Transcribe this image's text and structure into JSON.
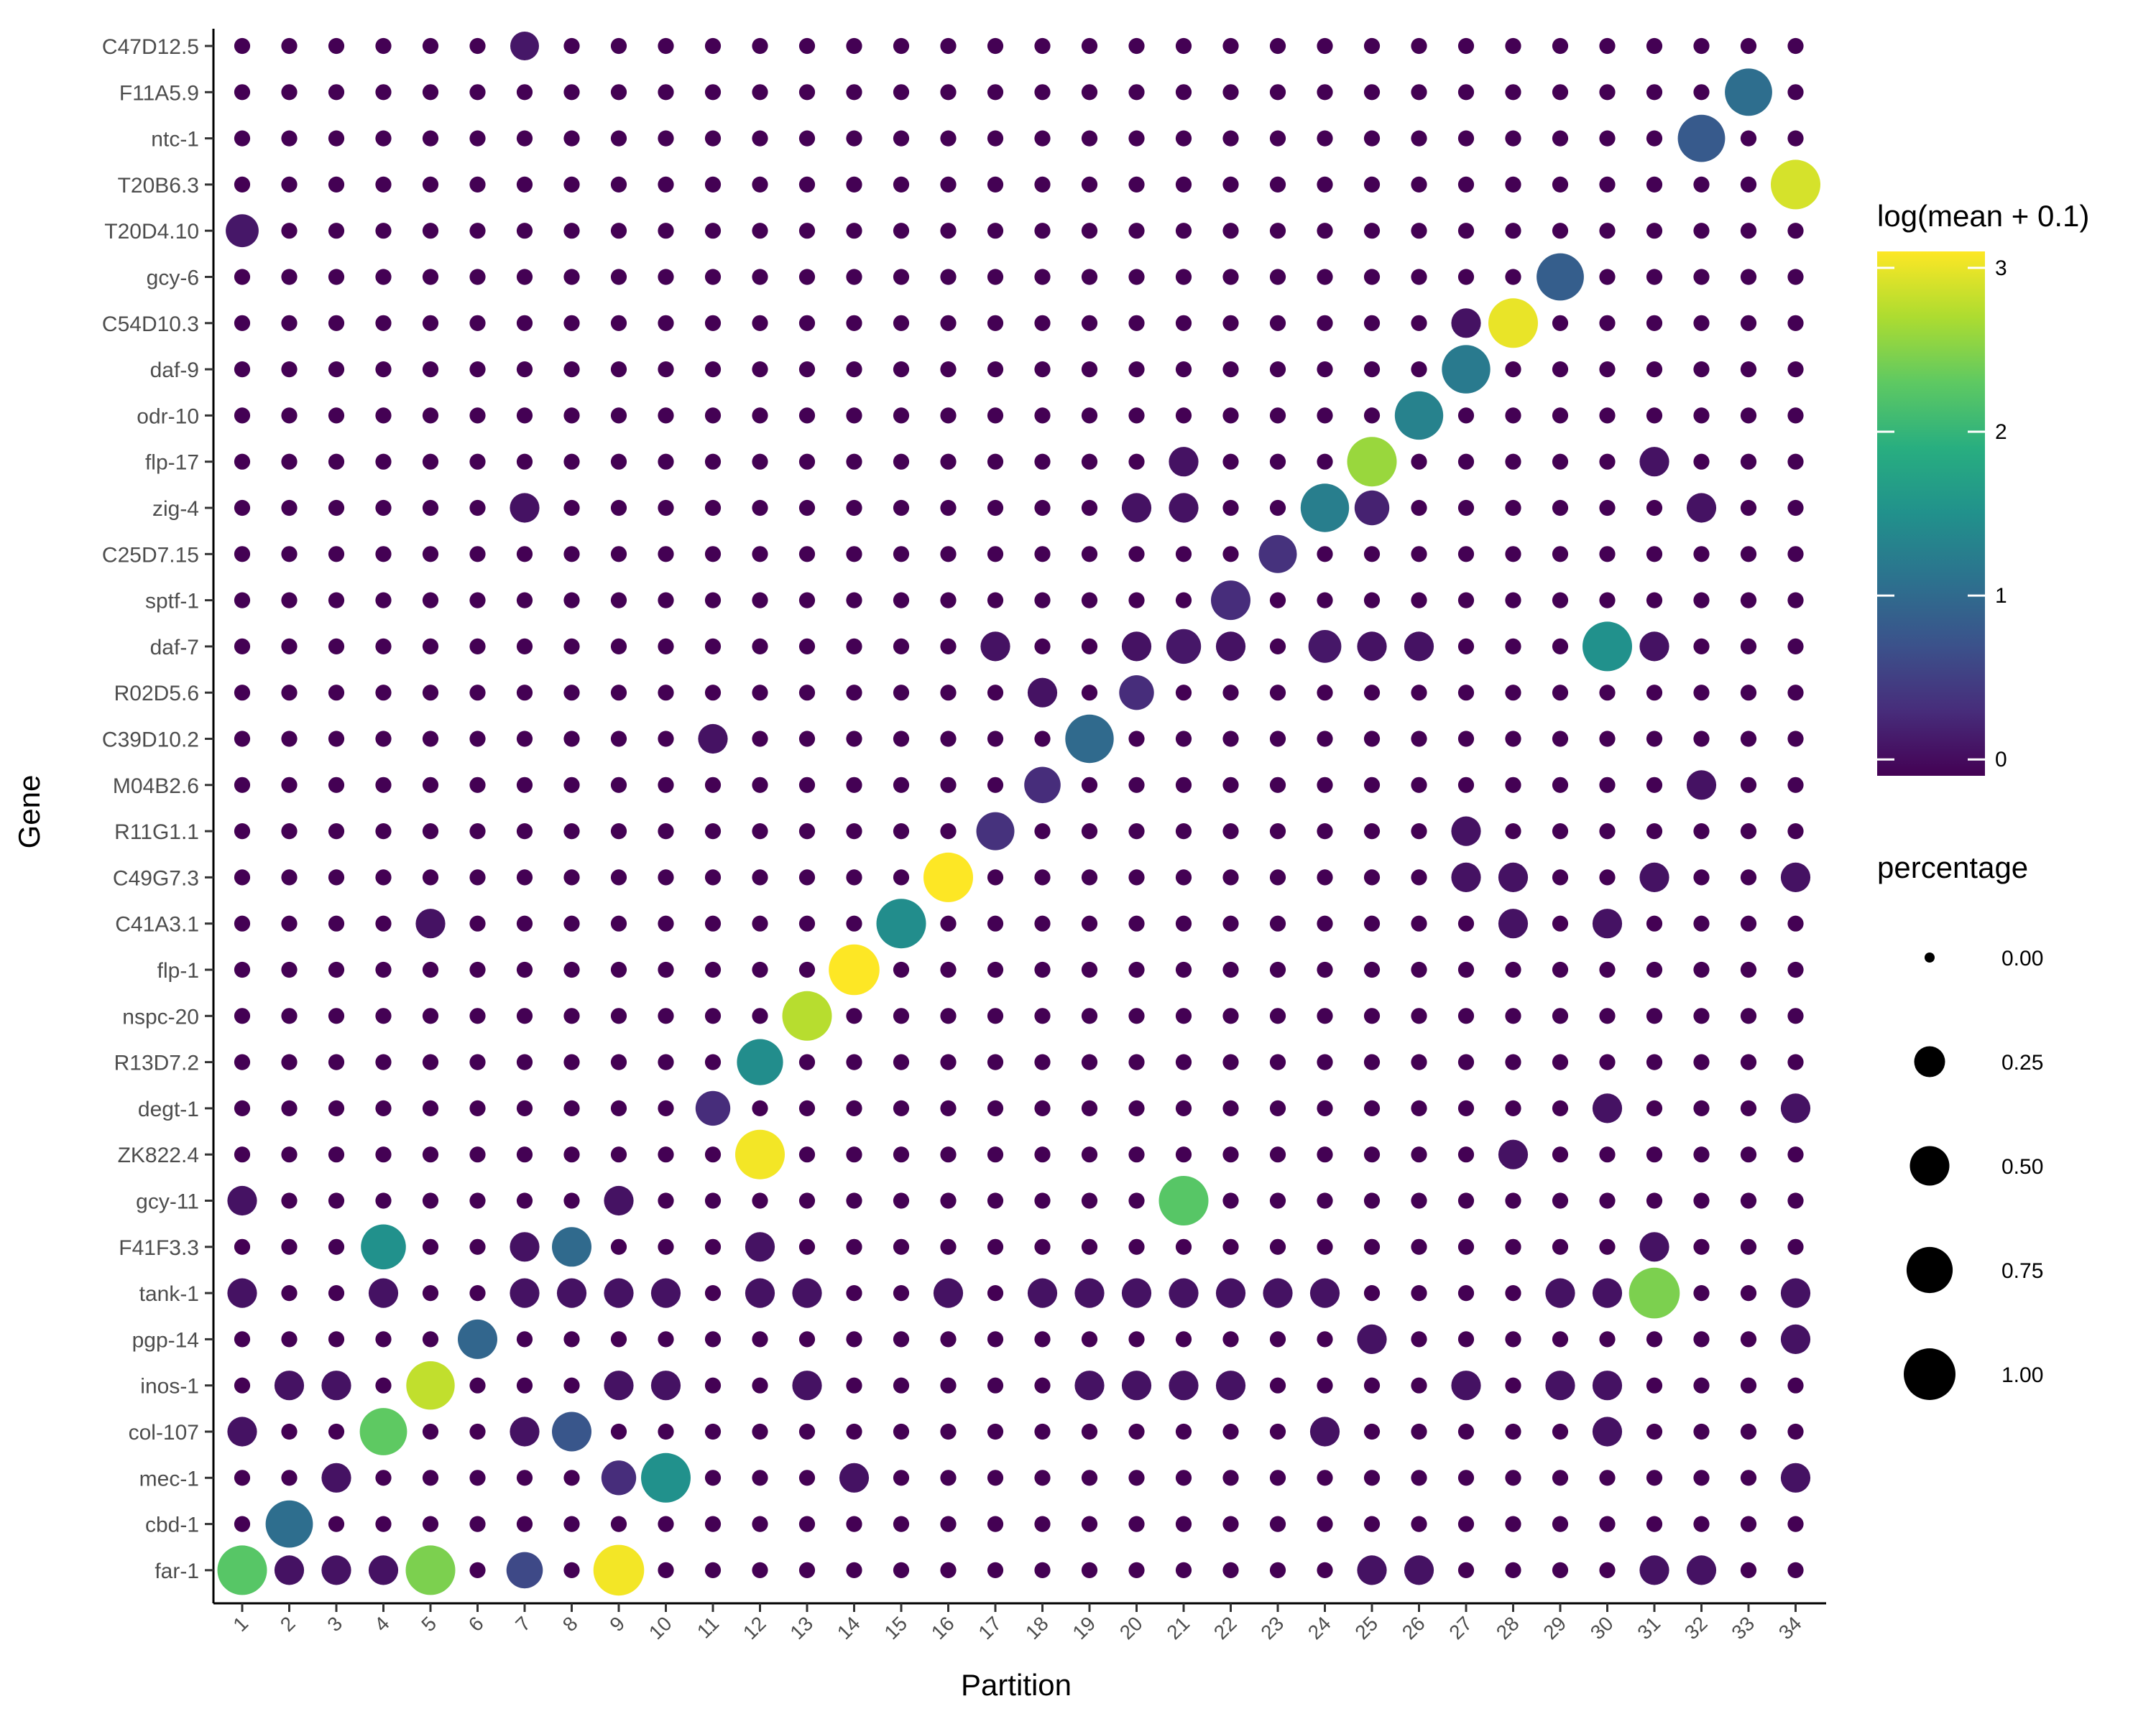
{
  "chart_data": {
    "type": "dot",
    "xlabel": "Partition",
    "ylabel": "Gene",
    "x_categories": [
      "1",
      "2",
      "3",
      "4",
      "5",
      "6",
      "7",
      "8",
      "9",
      "10",
      "11",
      "12",
      "13",
      "14",
      "15",
      "16",
      "17",
      "18",
      "19",
      "20",
      "21",
      "22",
      "23",
      "24",
      "25",
      "26",
      "27",
      "28",
      "29",
      "30",
      "31",
      "32",
      "33",
      "34"
    ],
    "genes_top_to_bottom": [
      "C47D12.5",
      "F11A5.9",
      "ntc-1",
      "T20B6.3",
      "T20D4.10",
      "gcy-6",
      "C54D10.3",
      "daf-9",
      "odr-10",
      "flp-17",
      "zig-4",
      "C25D7.15",
      "sptf-1",
      "daf-7",
      "R02D5.6",
      "C39D10.2",
      "M04B2.6",
      "R11G1.1",
      "C49G7.3",
      "C41A3.1",
      "flp-1",
      "nspc-20",
      "R13D7.2",
      "degt-1",
      "ZK822.4",
      "gcy-11",
      "F41F3.3",
      "tank-1",
      "pgp-14",
      "inos-1",
      "col-107",
      "mec-1",
      "cbd-1",
      "far-1"
    ],
    "background_percentage": 0.02,
    "background_log_mean": -0.1,
    "highlighted_points": [
      {
        "gene": "C47D12.5",
        "partition": "7",
        "percentage": 0.2,
        "log_mean": 0.1
      },
      {
        "gene": "F11A5.9",
        "partition": "33",
        "percentage": 0.8,
        "log_mean": 1.05
      },
      {
        "gene": "ntc-1",
        "partition": "32",
        "percentage": 0.8,
        "log_mean": 0.8
      },
      {
        "gene": "T20B6.3",
        "partition": "34",
        "percentage": 0.9,
        "log_mean": 2.9
      },
      {
        "gene": "T20D4.10",
        "partition": "1",
        "percentage": 0.3,
        "log_mean": 0.1
      },
      {
        "gene": "gcy-6",
        "partition": "29",
        "percentage": 0.8,
        "log_mean": 0.85
      },
      {
        "gene": "C54D10.3",
        "partition": "28",
        "percentage": 0.9,
        "log_mean": 3.0
      },
      {
        "gene": "daf-9",
        "partition": "27",
        "percentage": 0.85,
        "log_mean": 1.2
      },
      {
        "gene": "odr-10",
        "partition": "26",
        "percentage": 0.85,
        "log_mean": 1.3
      },
      {
        "gene": "flp-17",
        "partition": "25",
        "percentage": 0.9,
        "log_mean": 2.6
      },
      {
        "gene": "zig-4",
        "partition": "24",
        "percentage": 0.85,
        "log_mean": 1.25
      },
      {
        "gene": "zig-4",
        "partition": "25",
        "percentage": 0.35,
        "log_mean": 0.2
      },
      {
        "gene": "C25D7.15",
        "partition": "23",
        "percentage": 0.45,
        "log_mean": 0.35
      },
      {
        "gene": "sptf-1",
        "partition": "22",
        "percentage": 0.5,
        "log_mean": 0.3
      },
      {
        "gene": "daf-7",
        "partition": "30",
        "percentage": 0.9,
        "log_mean": 1.5
      },
      {
        "gene": "daf-7",
        "partition": "21",
        "percentage": 0.35,
        "log_mean": 0.1
      },
      {
        "gene": "daf-7",
        "partition": "24",
        "percentage": 0.3,
        "log_mean": 0.1
      },
      {
        "gene": "R02D5.6",
        "partition": "20",
        "percentage": 0.35,
        "log_mean": 0.3
      },
      {
        "gene": "C39D10.2",
        "partition": "19",
        "percentage": 0.85,
        "log_mean": 1.0
      },
      {
        "gene": "M04B2.6",
        "partition": "18",
        "percentage": 0.4,
        "log_mean": 0.3
      },
      {
        "gene": "R11G1.1",
        "partition": "17",
        "percentage": 0.45,
        "log_mean": 0.35
      },
      {
        "gene": "C49G7.3",
        "partition": "16",
        "percentage": 0.9,
        "log_mean": 3.1
      },
      {
        "gene": "C41A3.1",
        "partition": "15",
        "percentage": 0.9,
        "log_mean": 1.45
      },
      {
        "gene": "flp-1",
        "partition": "14",
        "percentage": 0.95,
        "log_mean": 3.1
      },
      {
        "gene": "nspc-20",
        "partition": "13",
        "percentage": 0.9,
        "log_mean": 2.75
      },
      {
        "gene": "R13D7.2",
        "partition": "12",
        "percentage": 0.75,
        "log_mean": 1.45
      },
      {
        "gene": "degt-1",
        "partition": "11",
        "percentage": 0.35,
        "log_mean": 0.3
      },
      {
        "gene": "ZK822.4",
        "partition": "12",
        "percentage": 0.9,
        "log_mean": 3.05
      },
      {
        "gene": "gcy-11",
        "partition": "21",
        "percentage": 0.9,
        "log_mean": 2.25
      },
      {
        "gene": "F41F3.3",
        "partition": "4",
        "percentage": 0.7,
        "log_mean": 1.5
      },
      {
        "gene": "F41F3.3",
        "partition": "8",
        "percentage": 0.5,
        "log_mean": 1.0
      },
      {
        "gene": "tank-1",
        "partition": "31",
        "percentage": 0.95,
        "log_mean": 2.45
      },
      {
        "gene": "pgp-14",
        "partition": "6",
        "percentage": 0.5,
        "log_mean": 0.95
      },
      {
        "gene": "inos-1",
        "partition": "5",
        "percentage": 0.85,
        "log_mean": 2.8
      },
      {
        "gene": "col-107",
        "partition": "4",
        "percentage": 0.8,
        "log_mean": 2.3
      },
      {
        "gene": "col-107",
        "partition": "8",
        "percentage": 0.5,
        "log_mean": 0.75
      },
      {
        "gene": "mec-1",
        "partition": "10",
        "percentage": 0.9,
        "log_mean": 1.5
      },
      {
        "gene": "mec-1",
        "partition": "9",
        "percentage": 0.35,
        "log_mean": 0.3
      },
      {
        "gene": "cbd-1",
        "partition": "2",
        "percentage": 0.8,
        "log_mean": 1.05
      },
      {
        "gene": "far-1",
        "partition": "1",
        "percentage": 0.9,
        "log_mean": 2.25
      },
      {
        "gene": "far-1",
        "partition": "5",
        "percentage": 0.9,
        "log_mean": 2.45
      },
      {
        "gene": "far-1",
        "partition": "9",
        "percentage": 0.95,
        "log_mean": 3.05
      },
      {
        "gene": "far-1",
        "partition": "7",
        "percentage": 0.4,
        "log_mean": 0.6
      }
    ],
    "moderate_points": {
      "percentage": 0.22,
      "log_mean": 0.05,
      "cells": [
        [
          "daf-7",
          "17"
        ],
        [
          "daf-7",
          "22"
        ],
        [
          "daf-7",
          "20"
        ],
        [
          "daf-7",
          "25"
        ],
        [
          "daf-7",
          "26"
        ],
        [
          "daf-7",
          "31"
        ],
        [
          "zig-4",
          "7"
        ],
        [
          "zig-4",
          "20"
        ],
        [
          "zig-4",
          "21"
        ],
        [
          "zig-4",
          "32"
        ],
        [
          "flp-17",
          "21"
        ],
        [
          "flp-17",
          "31"
        ],
        [
          "C41A3.1",
          "5"
        ],
        [
          "C41A3.1",
          "30"
        ],
        [
          "C41A3.1",
          "28"
        ],
        [
          "C49G7.3",
          "34"
        ],
        [
          "C49G7.3",
          "27"
        ],
        [
          "C49G7.3",
          "28"
        ],
        [
          "C49G7.3",
          "31"
        ],
        [
          "C39D10.2",
          "11"
        ],
        [
          "degt-1",
          "30"
        ],
        [
          "degt-1",
          "34"
        ],
        [
          "ZK822.4",
          "28"
        ],
        [
          "gcy-11",
          "1"
        ],
        [
          "gcy-11",
          "9"
        ],
        [
          "F41F3.3",
          "7"
        ],
        [
          "F41F3.3",
          "12"
        ],
        [
          "F41F3.3",
          "31"
        ],
        [
          "tank-1",
          "1"
        ],
        [
          "tank-1",
          "4"
        ],
        [
          "tank-1",
          "7"
        ],
        [
          "tank-1",
          "8"
        ],
        [
          "tank-1",
          "9"
        ],
        [
          "tank-1",
          "10"
        ],
        [
          "tank-1",
          "12"
        ],
        [
          "tank-1",
          "13"
        ],
        [
          "tank-1",
          "16"
        ],
        [
          "tank-1",
          "18"
        ],
        [
          "tank-1",
          "19"
        ],
        [
          "tank-1",
          "20"
        ],
        [
          "tank-1",
          "21"
        ],
        [
          "tank-1",
          "22"
        ],
        [
          "tank-1",
          "23"
        ],
        [
          "tank-1",
          "24"
        ],
        [
          "tank-1",
          "29"
        ],
        [
          "tank-1",
          "30"
        ],
        [
          "tank-1",
          "34"
        ],
        [
          "inos-1",
          "2"
        ],
        [
          "inos-1",
          "3"
        ],
        [
          "inos-1",
          "9"
        ],
        [
          "inos-1",
          "10"
        ],
        [
          "inos-1",
          "13"
        ],
        [
          "inos-1",
          "19"
        ],
        [
          "inos-1",
          "20"
        ],
        [
          "inos-1",
          "21"
        ],
        [
          "inos-1",
          "22"
        ],
        [
          "inos-1",
          "27"
        ],
        [
          "inos-1",
          "29"
        ],
        [
          "inos-1",
          "30"
        ],
        [
          "col-107",
          "1"
        ],
        [
          "col-107",
          "7"
        ],
        [
          "col-107",
          "24"
        ],
        [
          "col-107",
          "30"
        ],
        [
          "mec-1",
          "3"
        ],
        [
          "mec-1",
          "14"
        ],
        [
          "mec-1",
          "34"
        ],
        [
          "far-1",
          "2"
        ],
        [
          "far-1",
          "3"
        ],
        [
          "far-1",
          "4"
        ],
        [
          "far-1",
          "25"
        ],
        [
          "far-1",
          "26"
        ],
        [
          "far-1",
          "31"
        ],
        [
          "far-1",
          "32"
        ],
        [
          "pgp-14",
          "25"
        ],
        [
          "pgp-14",
          "34"
        ],
        [
          "R02D5.6",
          "18"
        ],
        [
          "C54D10.3",
          "27"
        ],
        [
          "M04B2.6",
          "32"
        ],
        [
          "R11G1.1",
          "27"
        ]
      ]
    },
    "color_scale": {
      "title": "log(mean + 0.1)",
      "ticks": [
        0,
        1,
        2,
        3
      ],
      "range": [
        -0.1,
        3.1
      ],
      "stops": [
        "#440154",
        "#472d7b",
        "#3b528b",
        "#2c728e",
        "#21918c",
        "#28ae80",
        "#5ec962",
        "#addc30",
        "#fde725"
      ]
    },
    "size_legend": {
      "title": "percentage",
      "values": [
        0.0,
        0.25,
        0.5,
        0.75,
        1.0
      ],
      "labels": [
        "0.00",
        "0.25",
        "0.50",
        "0.75",
        "1.00"
      ]
    }
  }
}
